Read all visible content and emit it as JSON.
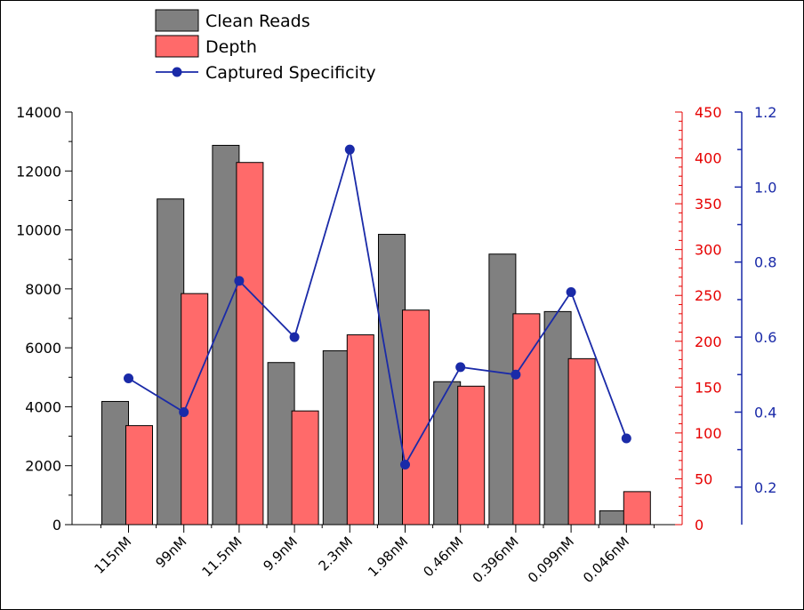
{
  "chart_data": {
    "type": "bar",
    "categories": [
      "115nM",
      "99nM",
      "11.5nM",
      "9.9nM",
      "2.3nM",
      "1.98nM",
      "0.46nM",
      "0.396nM",
      "0.099nM",
      "0.046nM"
    ],
    "series": [
      {
        "name": "Clean Reads",
        "type": "bar",
        "axis": "left",
        "color": "#808080",
        "values": [
          4180,
          11050,
          12870,
          5500,
          5900,
          9850,
          4850,
          9180,
          7230,
          470
        ]
      },
      {
        "name": "Depth",
        "type": "bar",
        "axis": "right-red",
        "color": "#ff6a6a",
        "values": [
          108,
          252,
          395,
          124,
          207,
          234,
          151,
          230,
          181,
          36
        ]
      },
      {
        "name": "Captured Specificity",
        "type": "line",
        "axis": "right-blue",
        "color": "#1a2aa8",
        "values": [
          0.49,
          0.4,
          0.75,
          0.6,
          1.1,
          0.26,
          0.52,
          0.5,
          0.72,
          0.33
        ]
      }
    ],
    "axes": {
      "left": {
        "ylim": [
          0,
          14000
        ],
        "ticks": [
          "0",
          "2000",
          "4000",
          "6000",
          "8000",
          "10000",
          "12000",
          "14000"
        ],
        "color": "#000000"
      },
      "right_red": {
        "ylim": [
          0,
          450
        ],
        "ticks": [
          "0",
          "50",
          "100",
          "150",
          "200",
          "250",
          "300",
          "350",
          "400",
          "450"
        ],
        "color": "#e60000"
      },
      "right_blue": {
        "ylim": [
          0.1,
          1.2
        ],
        "ticks": [
          "0.2",
          "0.4",
          "0.6",
          "0.8",
          "1.0",
          "1.2"
        ],
        "color": "#1a2aa8"
      }
    },
    "legend": {
      "position": "top-left",
      "entries": [
        {
          "label": "Clean Reads",
          "kind": "bar",
          "color": "#808080"
        },
        {
          "label": "Depth",
          "kind": "bar",
          "color": "#ff6a6a"
        },
        {
          "label": "Captured Specificity",
          "kind": "line",
          "color": "#1a2aa8"
        }
      ]
    },
    "title": "",
    "xlabel": "",
    "ylabel": "",
    "grid": false
  }
}
